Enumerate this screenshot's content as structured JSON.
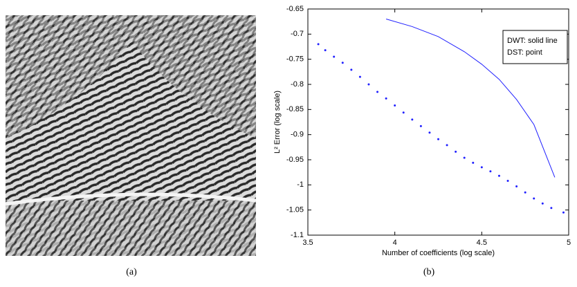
{
  "captions": [
    "(a)",
    "(b)"
  ],
  "chart_data": {
    "type": "line",
    "xlabel": "Number of coefficients (log scale)",
    "ylabel": "L² Error (log scale)",
    "xlim": [
      3.5,
      5
    ],
    "xticks": [
      3.5,
      4,
      4.5,
      5
    ],
    "ylim": [
      -1.1,
      -0.65
    ],
    "yticks": [
      -1.1,
      -1.05,
      -1,
      -0.95,
      -0.9,
      -0.85,
      -0.8,
      -0.75,
      -0.7,
      -0.65
    ],
    "legend": "upper right",
    "series": [
      {
        "name": "DWT: solid line",
        "color": "#2020ff",
        "style": "line",
        "x": [
          3.95,
          4.1,
          4.25,
          4.4,
          4.5,
          4.6,
          4.7,
          4.8,
          4.92
        ],
        "values": [
          -0.67,
          -0.685,
          -0.705,
          -0.735,
          -0.76,
          -0.79,
          -0.83,
          -0.88,
          -0.985
        ]
      },
      {
        "name": "DST: point",
        "color": "#2020ff",
        "style": "points",
        "x": [
          3.56,
          3.6,
          3.65,
          3.7,
          3.75,
          3.8,
          3.85,
          3.9,
          3.95,
          4.0,
          4.05,
          4.1,
          4.15,
          4.2,
          4.25,
          4.3,
          4.35,
          4.4,
          4.45,
          4.5,
          4.55,
          4.6,
          4.65,
          4.7,
          4.75,
          4.8,
          4.85,
          4.9,
          4.97
        ],
        "values": [
          -0.72,
          -0.732,
          -0.745,
          -0.757,
          -0.771,
          -0.785,
          -0.8,
          -0.815,
          -0.828,
          -0.842,
          -0.856,
          -0.87,
          -0.883,
          -0.896,
          -0.909,
          -0.921,
          -0.934,
          -0.946,
          -0.956,
          -0.965,
          -0.973,
          -0.982,
          -0.992,
          -1.003,
          -1.015,
          -1.027,
          -1.037,
          -1.046,
          -1.055
        ]
      }
    ]
  }
}
